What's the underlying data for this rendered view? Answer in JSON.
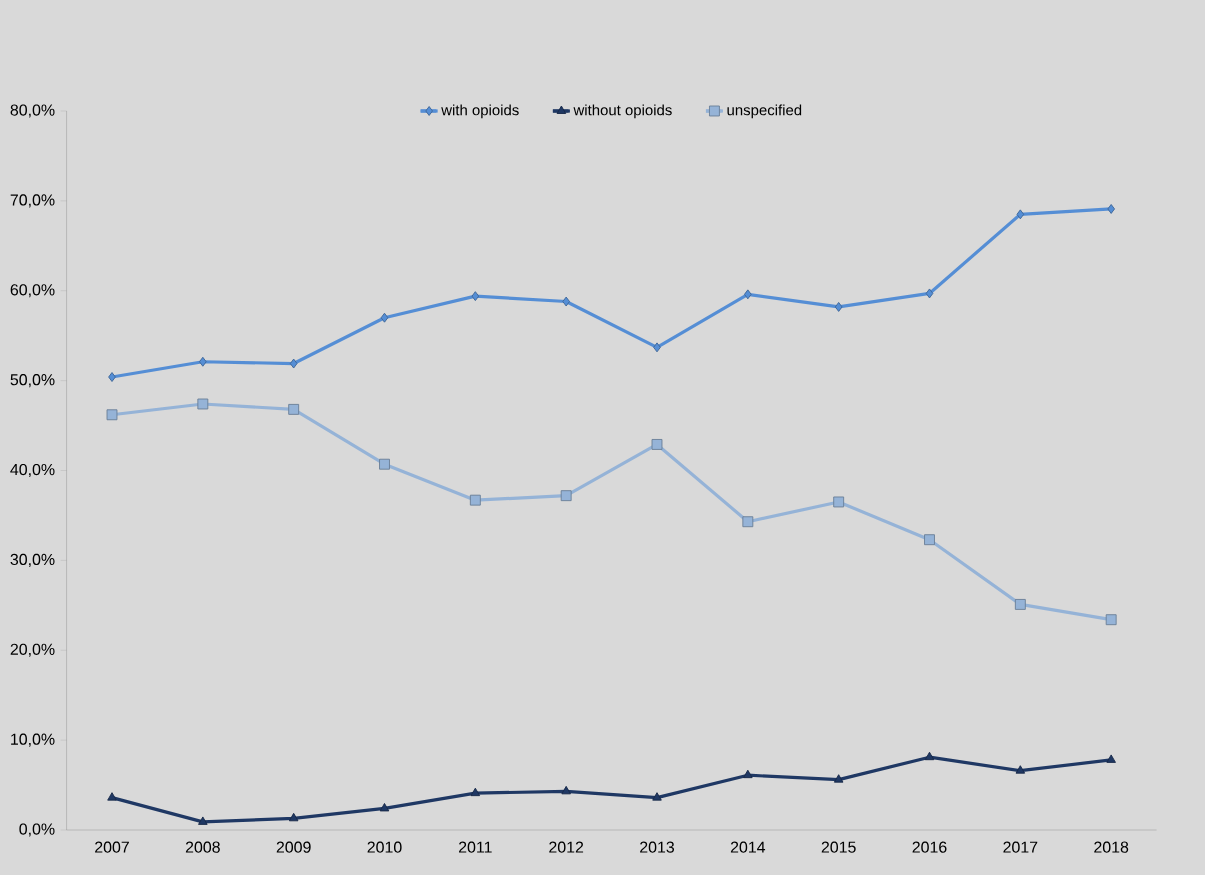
{
  "chart_data": {
    "type": "line",
    "categories": [
      "2007",
      "2008",
      "2009",
      "2010",
      "2011",
      "2012",
      "2013",
      "2014",
      "2015",
      "2016",
      "2017",
      "2018"
    ],
    "series": [
      {
        "name": "with opioids",
        "color": "#558ed5",
        "marker": "diamond",
        "values": [
          50.4,
          52.1,
          51.9,
          57.0,
          59.4,
          58.8,
          53.7,
          59.6,
          58.2,
          59.7,
          68.5,
          69.1
        ]
      },
      {
        "name": "without opioids",
        "color": "#1f3864",
        "marker": "triangle",
        "values": [
          3.6,
          0.9,
          1.3,
          2.4,
          4.1,
          4.3,
          3.6,
          6.1,
          5.6,
          8.1,
          6.6,
          7.8
        ]
      },
      {
        "name": "unspecified",
        "color": "#95b3d7",
        "marker": "square",
        "values": [
          46.2,
          47.4,
          46.8,
          40.7,
          36.7,
          37.2,
          42.9,
          34.3,
          36.5,
          32.3,
          25.1,
          23.4
        ]
      }
    ],
    "ylim": [
      0,
      80
    ],
    "yticks": [
      {
        "value": 0,
        "label": "0,0%"
      },
      {
        "value": 10,
        "label": "10,0%"
      },
      {
        "value": 20,
        "label": "20,0%"
      },
      {
        "value": 30,
        "label": "30,0%"
      },
      {
        "value": 40,
        "label": "40,0%"
      },
      {
        "value": 50,
        "label": "50,0%"
      },
      {
        "value": 60,
        "label": "60,0%"
      },
      {
        "value": 70,
        "label": "70,0%"
      },
      {
        "value": 80,
        "label": "80,0%"
      }
    ],
    "grid": false,
    "legend": "top",
    "line_style": "solid"
  }
}
